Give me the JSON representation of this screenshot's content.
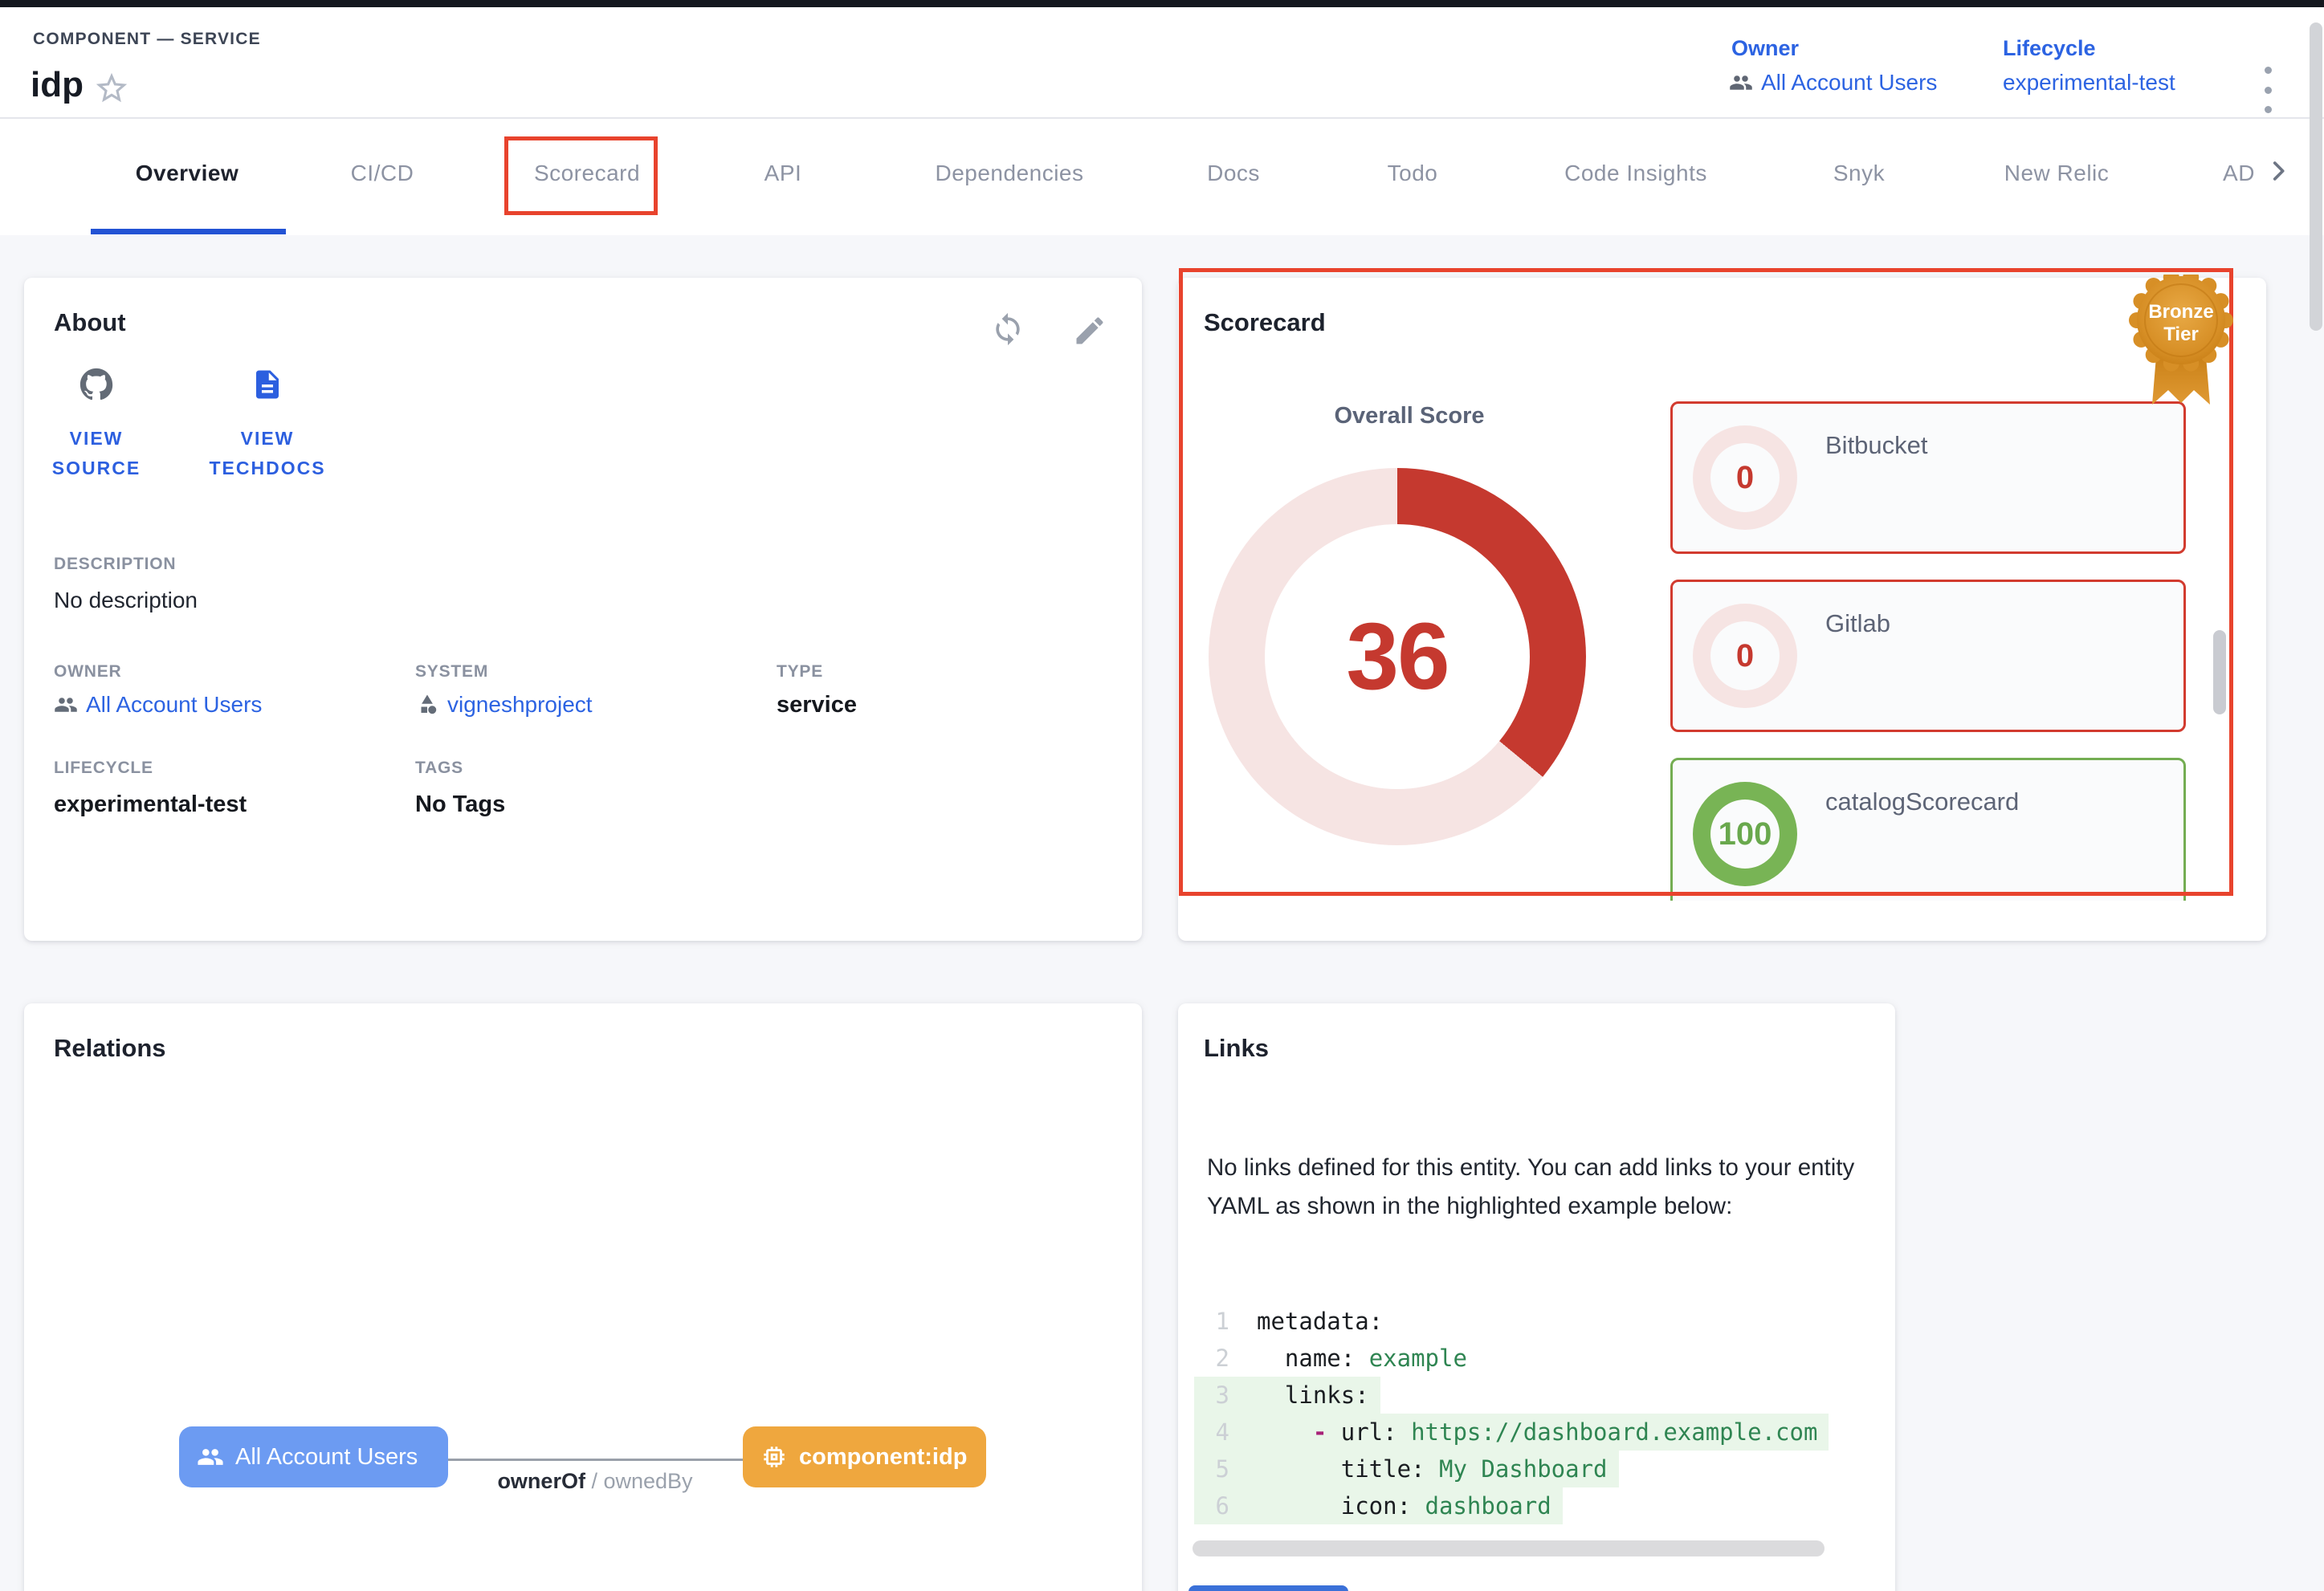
{
  "header": {
    "eyebrow": "COMPONENT — SERVICE",
    "title": "idp",
    "meta": {
      "owner_label": "Owner",
      "owner_value": "All Account Users",
      "lifecycle_label": "Lifecycle",
      "lifecycle_value": "experimental-test"
    }
  },
  "tabs": [
    {
      "label": "Overview",
      "active": true
    },
    {
      "label": "CI/CD",
      "active": false
    },
    {
      "label": "Scorecard",
      "active": false,
      "annotated": true
    },
    {
      "label": "API",
      "active": false
    },
    {
      "label": "Dependencies",
      "active": false
    },
    {
      "label": "Docs",
      "active": false
    },
    {
      "label": "Todo",
      "active": false
    },
    {
      "label": "Code Insights",
      "active": false
    },
    {
      "label": "Snyk",
      "active": false
    },
    {
      "label": "New Relic",
      "active": false
    },
    {
      "label": "AD",
      "active": false,
      "truncated": true
    }
  ],
  "about": {
    "title": "About",
    "source_link": {
      "icon": "github-icon",
      "label": "VIEW SOURCE"
    },
    "techdocs_link": {
      "icon": "document-icon",
      "label": "VIEW TECHDOCS"
    },
    "fields": {
      "description": {
        "label": "DESCRIPTION",
        "value": "No description"
      },
      "owner": {
        "label": "OWNER",
        "value": "All Account Users"
      },
      "system": {
        "label": "SYSTEM",
        "value": "vigneshproject"
      },
      "type": {
        "label": "TYPE",
        "value": "service"
      },
      "lifecycle": {
        "label": "LIFECYCLE",
        "value": "experimental-test"
      },
      "tags": {
        "label": "TAGS",
        "value": "No Tags"
      }
    }
  },
  "scorecard": {
    "title": "Scorecard",
    "tier_badge": {
      "line1": "Bronze",
      "line2": "Tier"
    },
    "gauge": {
      "label": "Overall Score",
      "value": 36,
      "max": 100
    },
    "items": [
      {
        "name": "Bitbucket",
        "score": 0,
        "status": "red"
      },
      {
        "name": "Gitlab",
        "score": 0,
        "status": "red"
      },
      {
        "name": "catalogScorecard",
        "score": 100,
        "status": "green"
      }
    ],
    "colors": {
      "red": "#c5392f",
      "red_track": "#f6e4e3",
      "green": "#78b455",
      "green_track": "#e8f0e3",
      "annotation": "#e8432d"
    }
  },
  "relations": {
    "title": "Relations",
    "nodes": [
      {
        "label": "All Account Users",
        "icon": "group-icon",
        "color": "#6c9bf2"
      },
      {
        "label": "component:idp",
        "icon": "chip-icon",
        "color": "#efa73e"
      }
    ],
    "edge": {
      "forward": "ownerOf",
      "separator": " / ",
      "reverse": "ownedBy"
    }
  },
  "links": {
    "title": "Links",
    "empty_message": "No links defined for this entity. You can add links to your entity YAML as shown in the highlighted example below:",
    "code": {
      "lines": [
        {
          "no": "1",
          "highlight": false,
          "segments": [
            {
              "text": "metadata:",
              "type": "key"
            }
          ]
        },
        {
          "no": "2",
          "highlight": false,
          "segments": [
            {
              "text": "  name: ",
              "type": "key"
            },
            {
              "text": "example",
              "type": "value"
            }
          ]
        },
        {
          "no": "3",
          "highlight": true,
          "segments": [
            {
              "text": "  links:",
              "type": "key"
            }
          ]
        },
        {
          "no": "4",
          "highlight": true,
          "segments": [
            {
              "text": "    ",
              "type": "key"
            },
            {
              "text": "- ",
              "type": "punct"
            },
            {
              "text": "url: ",
              "type": "key"
            },
            {
              "text": "https://dashboard.example.com",
              "type": "value"
            }
          ]
        },
        {
          "no": "5",
          "highlight": true,
          "segments": [
            {
              "text": "      title: ",
              "type": "key"
            },
            {
              "text": "My Dashboard",
              "type": "value"
            }
          ]
        },
        {
          "no": "6",
          "highlight": true,
          "segments": [
            {
              "text": "      icon: ",
              "type": "key"
            },
            {
              "text": "dashboard",
              "type": "value"
            }
          ]
        }
      ]
    }
  }
}
